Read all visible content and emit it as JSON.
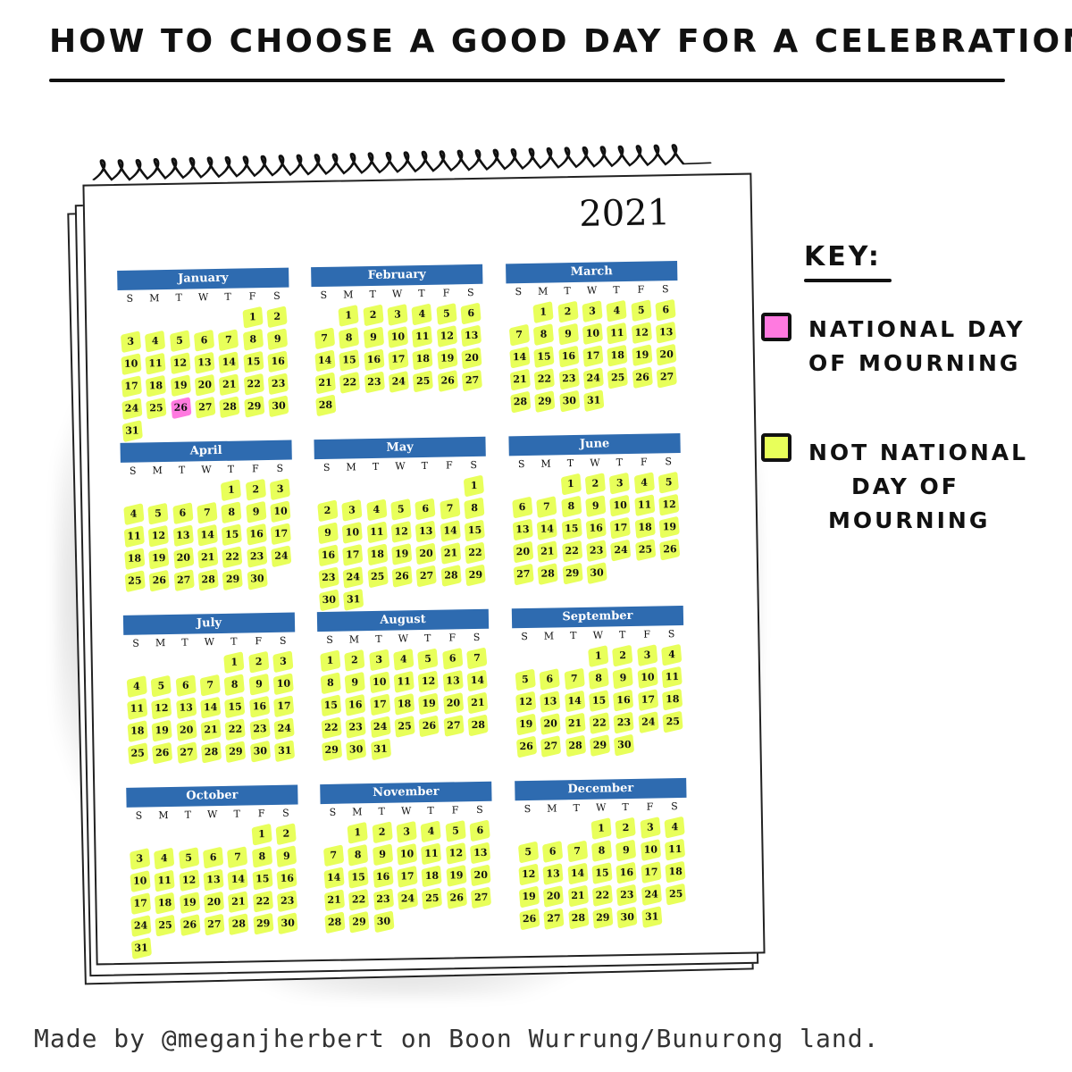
{
  "title": "HOW TO CHOOSE A GOOD DAY FOR A CELEBRATION:",
  "colors": {
    "header_blue": "#2e6bb0",
    "mourning": "#ff7ae0",
    "not_mourning": "#e8ff5a"
  },
  "calendar": {
    "year": "2021",
    "weekday_headers": [
      "S",
      "M",
      "T",
      "W",
      "T",
      "F",
      "S"
    ],
    "mourning_day": {
      "month": "January",
      "day": 26
    },
    "months": [
      {
        "name": "January",
        "start_weekday": 5,
        "days": 31
      },
      {
        "name": "February",
        "start_weekday": 1,
        "days": 28
      },
      {
        "name": "March",
        "start_weekday": 1,
        "days": 31
      },
      {
        "name": "April",
        "start_weekday": 4,
        "days": 30
      },
      {
        "name": "May",
        "start_weekday": 6,
        "days": 31
      },
      {
        "name": "June",
        "start_weekday": 2,
        "days": 30
      },
      {
        "name": "July",
        "start_weekday": 4,
        "days": 31
      },
      {
        "name": "August",
        "start_weekday": 0,
        "days": 31
      },
      {
        "name": "September",
        "start_weekday": 3,
        "days": 30
      },
      {
        "name": "October",
        "start_weekday": 5,
        "days": 31
      },
      {
        "name": "November",
        "start_weekday": 1,
        "days": 30
      },
      {
        "name": "December",
        "start_weekday": 3,
        "days": 31
      }
    ]
  },
  "key": {
    "title": "KEY:",
    "mourning_lines": [
      "NATIONAL DAY",
      "OF MOURNING"
    ],
    "not_mourning_lines": [
      "NOT NATIONAL",
      "DAY OF",
      "MOURNING"
    ]
  },
  "credit": "Made by @meganjherbert on Boon Wurrung/Bunurong land."
}
